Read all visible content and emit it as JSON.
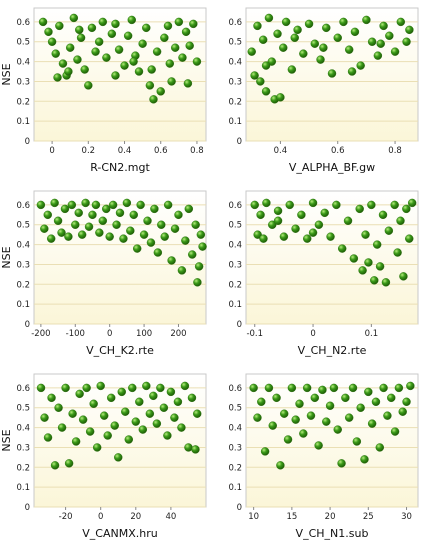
{
  "chart_data": [
    {
      "type": "scatter",
      "xlabel": "R-CN2.mgt",
      "ylabel": "NSE",
      "xlim": [
        -0.1,
        0.85
      ],
      "ylim": [
        0,
        0.67
      ],
      "xticks": [
        0,
        0.2,
        0.4,
        0.6,
        0.8
      ],
      "xtick_labels": [
        "0",
        "0.2",
        "0.4",
        "0.6",
        "0.8"
      ],
      "yticks": [
        0,
        0.1,
        0.2,
        0.3,
        0.4,
        0.5,
        0.6
      ],
      "ytick_labels": [
        "0",
        "0.1",
        "0.2",
        "0.3",
        "0.4",
        "0.5",
        "0.6"
      ],
      "grid": true,
      "marker_color": "#3a9a18",
      "points": [
        [
          -0.05,
          0.6
        ],
        [
          -0.02,
          0.55
        ],
        [
          0.0,
          0.5
        ],
        [
          0.02,
          0.44
        ],
        [
          0.04,
          0.58
        ],
        [
          0.06,
          0.39
        ],
        [
          0.08,
          0.33
        ],
        [
          0.1,
          0.47
        ],
        [
          0.12,
          0.62
        ],
        [
          0.14,
          0.41
        ],
        [
          0.16,
          0.52
        ],
        [
          0.18,
          0.36
        ],
        [
          0.2,
          0.28
        ],
        [
          0.22,
          0.57
        ],
        [
          0.24,
          0.45
        ],
        [
          0.26,
          0.5
        ],
        [
          0.28,
          0.6
        ],
        [
          0.3,
          0.42
        ],
        [
          0.33,
          0.54
        ],
        [
          0.35,
          0.59
        ],
        [
          0.37,
          0.46
        ],
        [
          0.4,
          0.38
        ],
        [
          0.42,
          0.53
        ],
        [
          0.44,
          0.61
        ],
        [
          0.46,
          0.43
        ],
        [
          0.48,
          0.35
        ],
        [
          0.5,
          0.49
        ],
        [
          0.52,
          0.57
        ],
        [
          0.54,
          0.28
        ],
        [
          0.56,
          0.21
        ],
        [
          0.58,
          0.45
        ],
        [
          0.6,
          0.25
        ],
        [
          0.62,
          0.52
        ],
        [
          0.64,
          0.58
        ],
        [
          0.66,
          0.3
        ],
        [
          0.68,
          0.47
        ],
        [
          0.7,
          0.6
        ],
        [
          0.72,
          0.42
        ],
        [
          0.74,
          0.55
        ],
        [
          0.76,
          0.48
        ],
        [
          0.78,
          0.59
        ],
        [
          0.8,
          0.4
        ],
        [
          0.03,
          0.32
        ],
        [
          0.09,
          0.35
        ],
        [
          0.15,
          0.56
        ],
        [
          0.35,
          0.33
        ],
        [
          0.45,
          0.4
        ],
        [
          0.55,
          0.36
        ],
        [
          0.65,
          0.39
        ],
        [
          0.75,
          0.29
        ]
      ]
    },
    {
      "type": "scatter",
      "xlabel": "V_ALPHA_BF.gw",
      "ylabel": "",
      "xlim": [
        0.28,
        0.88
      ],
      "ylim": [
        0,
        0.67
      ],
      "xticks": [
        0.4,
        0.6,
        0.8
      ],
      "xtick_labels": [
        "0.4",
        "0.6",
        "0.8"
      ],
      "yticks": [
        0,
        0.1,
        0.2,
        0.3,
        0.4,
        0.5,
        0.6
      ],
      "ytick_labels": [
        "0",
        "0.1",
        "0.2",
        "0.3",
        "0.4",
        "0.5",
        "0.6"
      ],
      "grid": true,
      "marker_color": "#3a9a18",
      "points": [
        [
          0.3,
          0.45
        ],
        [
          0.31,
          0.33
        ],
        [
          0.32,
          0.58
        ],
        [
          0.33,
          0.3
        ],
        [
          0.34,
          0.51
        ],
        [
          0.35,
          0.25
        ],
        [
          0.36,
          0.62
        ],
        [
          0.37,
          0.4
        ],
        [
          0.38,
          0.21
        ],
        [
          0.39,
          0.54
        ],
        [
          0.4,
          0.22
        ],
        [
          0.41,
          0.47
        ],
        [
          0.42,
          0.6
        ],
        [
          0.44,
          0.36
        ],
        [
          0.46,
          0.56
        ],
        [
          0.48,
          0.44
        ],
        [
          0.5,
          0.59
        ],
        [
          0.52,
          0.49
        ],
        [
          0.54,
          0.41
        ],
        [
          0.56,
          0.57
        ],
        [
          0.58,
          0.34
        ],
        [
          0.6,
          0.52
        ],
        [
          0.62,
          0.6
        ],
        [
          0.64,
          0.46
        ],
        [
          0.66,
          0.55
        ],
        [
          0.68,
          0.38
        ],
        [
          0.7,
          0.61
        ],
        [
          0.72,
          0.5
        ],
        [
          0.74,
          0.43
        ],
        [
          0.76,
          0.58
        ],
        [
          0.78,
          0.53
        ],
        [
          0.8,
          0.45
        ],
        [
          0.82,
          0.6
        ],
        [
          0.84,
          0.5
        ],
        [
          0.85,
          0.56
        ],
        [
          0.35,
          0.38
        ],
        [
          0.45,
          0.52
        ],
        [
          0.55,
          0.47
        ],
        [
          0.65,
          0.35
        ],
        [
          0.75,
          0.49
        ]
      ]
    },
    {
      "type": "scatter",
      "xlabel": "V_CH_K2.rte",
      "ylabel": "NSE",
      "xlim": [
        -220,
        280
      ],
      "ylim": [
        0,
        0.67
      ],
      "xticks": [
        -200,
        -100,
        0,
        100,
        200
      ],
      "xtick_labels": [
        "-200",
        "-100",
        "0",
        "100",
        "200"
      ],
      "yticks": [
        0,
        0.1,
        0.2,
        0.3,
        0.4,
        0.5,
        0.6
      ],
      "ytick_labels": [
        "0",
        "0.1",
        "0.2",
        "0.3",
        "0.4",
        "0.5",
        "0.6"
      ],
      "grid": true,
      "marker_color": "#3a9a18",
      "points": [
        [
          -200,
          0.6
        ],
        [
          -190,
          0.48
        ],
        [
          -180,
          0.55
        ],
        [
          -170,
          0.43
        ],
        [
          -160,
          0.61
        ],
        [
          -150,
          0.52
        ],
        [
          -140,
          0.46
        ],
        [
          -130,
          0.58
        ],
        [
          -120,
          0.44
        ],
        [
          -110,
          0.6
        ],
        [
          -100,
          0.5
        ],
        [
          -90,
          0.56
        ],
        [
          -80,
          0.45
        ],
        [
          -70,
          0.61
        ],
        [
          -60,
          0.49
        ],
        [
          -50,
          0.55
        ],
        [
          -40,
          0.6
        ],
        [
          -30,
          0.46
        ],
        [
          -20,
          0.52
        ],
        [
          -10,
          0.58
        ],
        [
          0,
          0.44
        ],
        [
          10,
          0.6
        ],
        [
          20,
          0.5
        ],
        [
          30,
          0.56
        ],
        [
          40,
          0.43
        ],
        [
          50,
          0.61
        ],
        [
          60,
          0.47
        ],
        [
          70,
          0.55
        ],
        [
          80,
          0.38
        ],
        [
          90,
          0.6
        ],
        [
          100,
          0.45
        ],
        [
          110,
          0.52
        ],
        [
          120,
          0.41
        ],
        [
          130,
          0.58
        ],
        [
          140,
          0.36
        ],
        [
          150,
          0.5
        ],
        [
          160,
          0.44
        ],
        [
          170,
          0.6
        ],
        [
          180,
          0.32
        ],
        [
          190,
          0.48
        ],
        [
          200,
          0.55
        ],
        [
          210,
          0.27
        ],
        [
          220,
          0.42
        ],
        [
          230,
          0.58
        ],
        [
          240,
          0.35
        ],
        [
          250,
          0.5
        ],
        [
          255,
          0.21
        ],
        [
          260,
          0.29
        ],
        [
          265,
          0.45
        ],
        [
          270,
          0.39
        ]
      ]
    },
    {
      "type": "scatter",
      "xlabel": "V_CH_N2.rte",
      "ylabel": "",
      "xlim": [
        -0.115,
        0.18
      ],
      "ylim": [
        0,
        0.67
      ],
      "xticks": [
        -0.1,
        0,
        0.1
      ],
      "xtick_labels": [
        "-0.1",
        "0",
        "0.1"
      ],
      "yticks": [
        0,
        0.1,
        0.2,
        0.3,
        0.4,
        0.5,
        0.6
      ],
      "ytick_labels": [
        "0",
        "0.1",
        "0.2",
        "0.3",
        "0.4",
        "0.5",
        "0.6"
      ],
      "grid": true,
      "marker_color": "#3a9a18",
      "points": [
        [
          -0.1,
          0.6
        ],
        [
          -0.095,
          0.45
        ],
        [
          -0.09,
          0.55
        ],
        [
          -0.085,
          0.43
        ],
        [
          -0.08,
          0.61
        ],
        [
          -0.07,
          0.5
        ],
        [
          -0.06,
          0.57
        ],
        [
          -0.05,
          0.44
        ],
        [
          -0.04,
          0.6
        ],
        [
          -0.03,
          0.48
        ],
        [
          -0.02,
          0.55
        ],
        [
          -0.01,
          0.43
        ],
        [
          0.0,
          0.61
        ],
        [
          0.01,
          0.5
        ],
        [
          0.02,
          0.56
        ],
        [
          0.03,
          0.44
        ],
        [
          0.04,
          0.6
        ],
        [
          0.05,
          0.38
        ],
        [
          0.06,
          0.52
        ],
        [
          0.07,
          0.33
        ],
        [
          0.08,
          0.58
        ],
        [
          0.085,
          0.27
        ],
        [
          0.09,
          0.45
        ],
        [
          0.095,
          0.31
        ],
        [
          0.1,
          0.6
        ],
        [
          0.105,
          0.22
        ],
        [
          0.11,
          0.4
        ],
        [
          0.115,
          0.29
        ],
        [
          0.12,
          0.55
        ],
        [
          0.125,
          0.21
        ],
        [
          0.13,
          0.47
        ],
        [
          0.14,
          0.6
        ],
        [
          0.145,
          0.36
        ],
        [
          0.15,
          0.52
        ],
        [
          0.155,
          0.24
        ],
        [
          0.16,
          0.58
        ],
        [
          0.165,
          0.43
        ],
        [
          0.17,
          0.61
        ],
        [
          0.0,
          0.46
        ],
        [
          -0.06,
          0.52
        ]
      ]
    },
    {
      "type": "scatter",
      "xlabel": "V_CANMX.hru",
      "ylabel": "NSE",
      "xlim": [
        -38,
        60
      ],
      "ylim": [
        0,
        0.67
      ],
      "xticks": [
        -20,
        0,
        20,
        40
      ],
      "xtick_labels": [
        "-20",
        "0",
        "20",
        "40"
      ],
      "yticks": [
        0,
        0.1,
        0.2,
        0.3,
        0.4,
        0.5,
        0.6
      ],
      "ytick_labels": [
        "0",
        "0.1",
        "0.2",
        "0.3",
        "0.4",
        "0.5",
        "0.6"
      ],
      "grid": true,
      "marker_color": "#3a9a18",
      "points": [
        [
          -34,
          0.6
        ],
        [
          -32,
          0.45
        ],
        [
          -30,
          0.35
        ],
        [
          -28,
          0.55
        ],
        [
          -26,
          0.21
        ],
        [
          -24,
          0.5
        ],
        [
          -22,
          0.4
        ],
        [
          -20,
          0.6
        ],
        [
          -18,
          0.22
        ],
        [
          -16,
          0.47
        ],
        [
          -14,
          0.33
        ],
        [
          -12,
          0.57
        ],
        [
          -10,
          0.44
        ],
        [
          -8,
          0.6
        ],
        [
          -6,
          0.38
        ],
        [
          -4,
          0.52
        ],
        [
          -2,
          0.3
        ],
        [
          0,
          0.61
        ],
        [
          2,
          0.46
        ],
        [
          4,
          0.36
        ],
        [
          6,
          0.55
        ],
        [
          8,
          0.41
        ],
        [
          10,
          0.25
        ],
        [
          12,
          0.58
        ],
        [
          14,
          0.48
        ],
        [
          16,
          0.34
        ],
        [
          18,
          0.6
        ],
        [
          20,
          0.43
        ],
        [
          22,
          0.53
        ],
        [
          24,
          0.39
        ],
        [
          26,
          0.61
        ],
        [
          28,
          0.47
        ],
        [
          30,
          0.56
        ],
        [
          32,
          0.42
        ],
        [
          34,
          0.6
        ],
        [
          36,
          0.5
        ],
        [
          38,
          0.36
        ],
        [
          40,
          0.58
        ],
        [
          42,
          0.45
        ],
        [
          44,
          0.53
        ],
        [
          46,
          0.4
        ],
        [
          48,
          0.61
        ],
        [
          50,
          0.3
        ],
        [
          52,
          0.55
        ],
        [
          54,
          0.29
        ],
        [
          55,
          0.47
        ]
      ]
    },
    {
      "type": "scatter",
      "xlabel": "V_CH_N1.sub",
      "ylabel": "",
      "xlim": [
        9,
        31.5
      ],
      "ylim": [
        0,
        0.67
      ],
      "xticks": [
        10,
        15,
        20,
        25,
        30
      ],
      "xtick_labels": [
        "10",
        "15",
        "20",
        "25",
        "30"
      ],
      "yticks": [
        0,
        0.1,
        0.2,
        0.3,
        0.4,
        0.5,
        0.6
      ],
      "ytick_labels": [
        "0",
        "0.1",
        "0.2",
        "0.3",
        "0.4",
        "0.5",
        "0.6"
      ],
      "grid": true,
      "marker_color": "#3a9a18",
      "points": [
        [
          10,
          0.6
        ],
        [
          10.5,
          0.45
        ],
        [
          11,
          0.53
        ],
        [
          11.5,
          0.28
        ],
        [
          12,
          0.6
        ],
        [
          12.5,
          0.41
        ],
        [
          13,
          0.55
        ],
        [
          13.5,
          0.21
        ],
        [
          14,
          0.47
        ],
        [
          14.5,
          0.34
        ],
        [
          15,
          0.6
        ],
        [
          15.5,
          0.44
        ],
        [
          16,
          0.52
        ],
        [
          16.5,
          0.37
        ],
        [
          17,
          0.6
        ],
        [
          17.5,
          0.46
        ],
        [
          18,
          0.55
        ],
        [
          18.5,
          0.31
        ],
        [
          19,
          0.59
        ],
        [
          19.5,
          0.43
        ],
        [
          20,
          0.51
        ],
        [
          20.5,
          0.6
        ],
        [
          21,
          0.39
        ],
        [
          21.5,
          0.22
        ],
        [
          22,
          0.55
        ],
        [
          22.5,
          0.45
        ],
        [
          23,
          0.6
        ],
        [
          23.5,
          0.33
        ],
        [
          24,
          0.5
        ],
        [
          24.5,
          0.24
        ],
        [
          25,
          0.58
        ],
        [
          25.5,
          0.42
        ],
        [
          26,
          0.53
        ],
        [
          26.5,
          0.3
        ],
        [
          27,
          0.6
        ],
        [
          27.5,
          0.46
        ],
        [
          28,
          0.55
        ],
        [
          28.5,
          0.38
        ],
        [
          29,
          0.6
        ],
        [
          29.5,
          0.48
        ],
        [
          30,
          0.53
        ],
        [
          30.5,
          0.61
        ]
      ]
    }
  ]
}
